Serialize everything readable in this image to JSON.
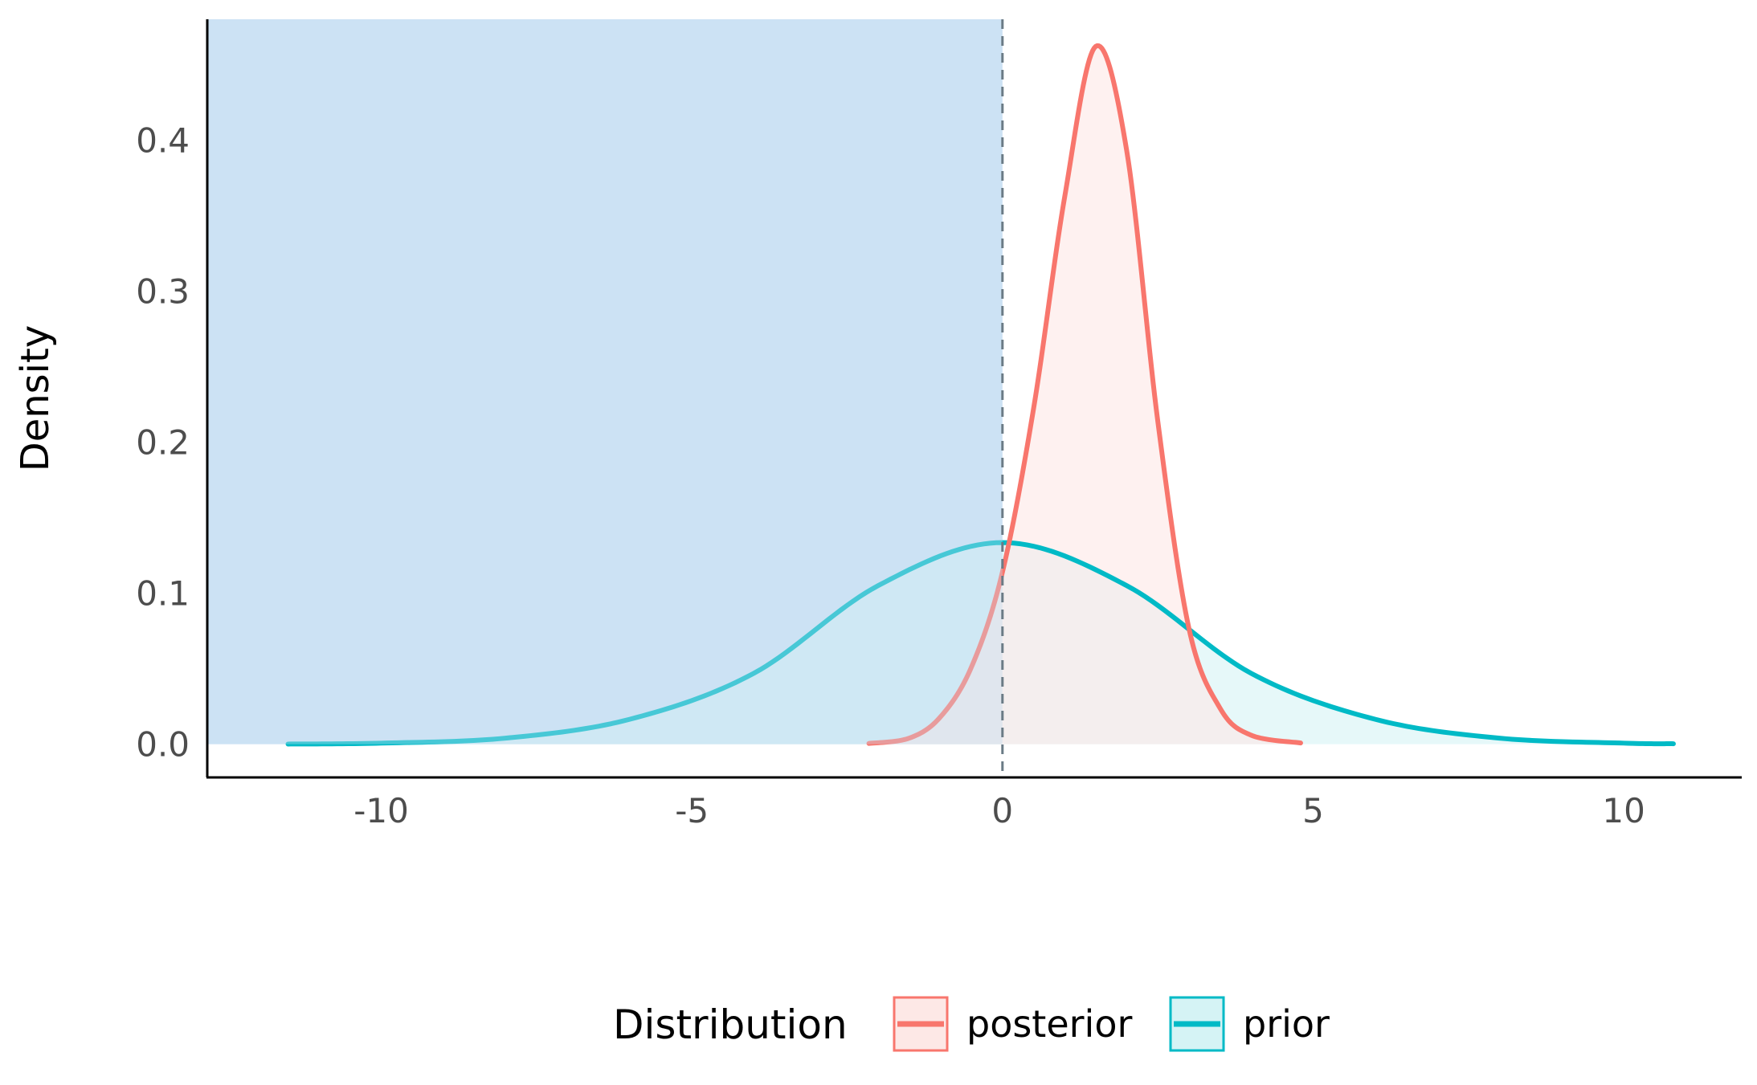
{
  "chart_data": {
    "type": "area",
    "title": "",
    "xlabel": "",
    "ylabel": "Density",
    "xlim": [
      -12.8,
      11.9
    ],
    "ylim": [
      -0.022,
      0.48
    ],
    "x_ticks": [
      -10,
      -5,
      0,
      5,
      10
    ],
    "x_tick_labels": [
      "-10",
      "-5",
      "0",
      "5",
      "10"
    ],
    "y_ticks": [
      0.0,
      0.1,
      0.2,
      0.3,
      0.4
    ],
    "y_tick_labels": [
      "0.0",
      "0.1",
      "0.2",
      "0.3",
      "0.4"
    ],
    "grid": false,
    "shaded_region": {
      "x_from": -12.8,
      "x_to": 0,
      "color": "#cce2f4"
    },
    "reference_line": {
      "x": 0,
      "style": "dashed",
      "color": "#6b7b86"
    },
    "series": [
      {
        "name": "posterior",
        "color": "#f8766d",
        "fill": "#fde8e6",
        "x": [
          -2.15,
          -1.5,
          -1.0,
          -0.5,
          0.0,
          0.5,
          1.0,
          1.5,
          2.0,
          2.5,
          3.0,
          3.5,
          4.0,
          4.8
        ],
        "values": [
          0.0005,
          0.004,
          0.018,
          0.051,
          0.114,
          0.222,
          0.362,
          0.462,
          0.393,
          0.214,
          0.077,
          0.024,
          0.006,
          0.0008
        ]
      },
      {
        "name": "prior",
        "color": "#00bac6",
        "fill": "#d5f3f5",
        "x": [
          -11.5,
          -10,
          -8,
          -6,
          -4,
          -2,
          0,
          2,
          4,
          6,
          8,
          10,
          10.8
        ],
        "values": [
          0.0001,
          0.0007,
          0.004,
          0.0165,
          0.047,
          0.105,
          0.1335,
          0.105,
          0.047,
          0.0165,
          0.004,
          0.0007,
          0.0003
        ]
      }
    ],
    "legend": {
      "title": "Distribution",
      "position": "bottom",
      "entries": [
        "posterior",
        "prior"
      ]
    }
  }
}
